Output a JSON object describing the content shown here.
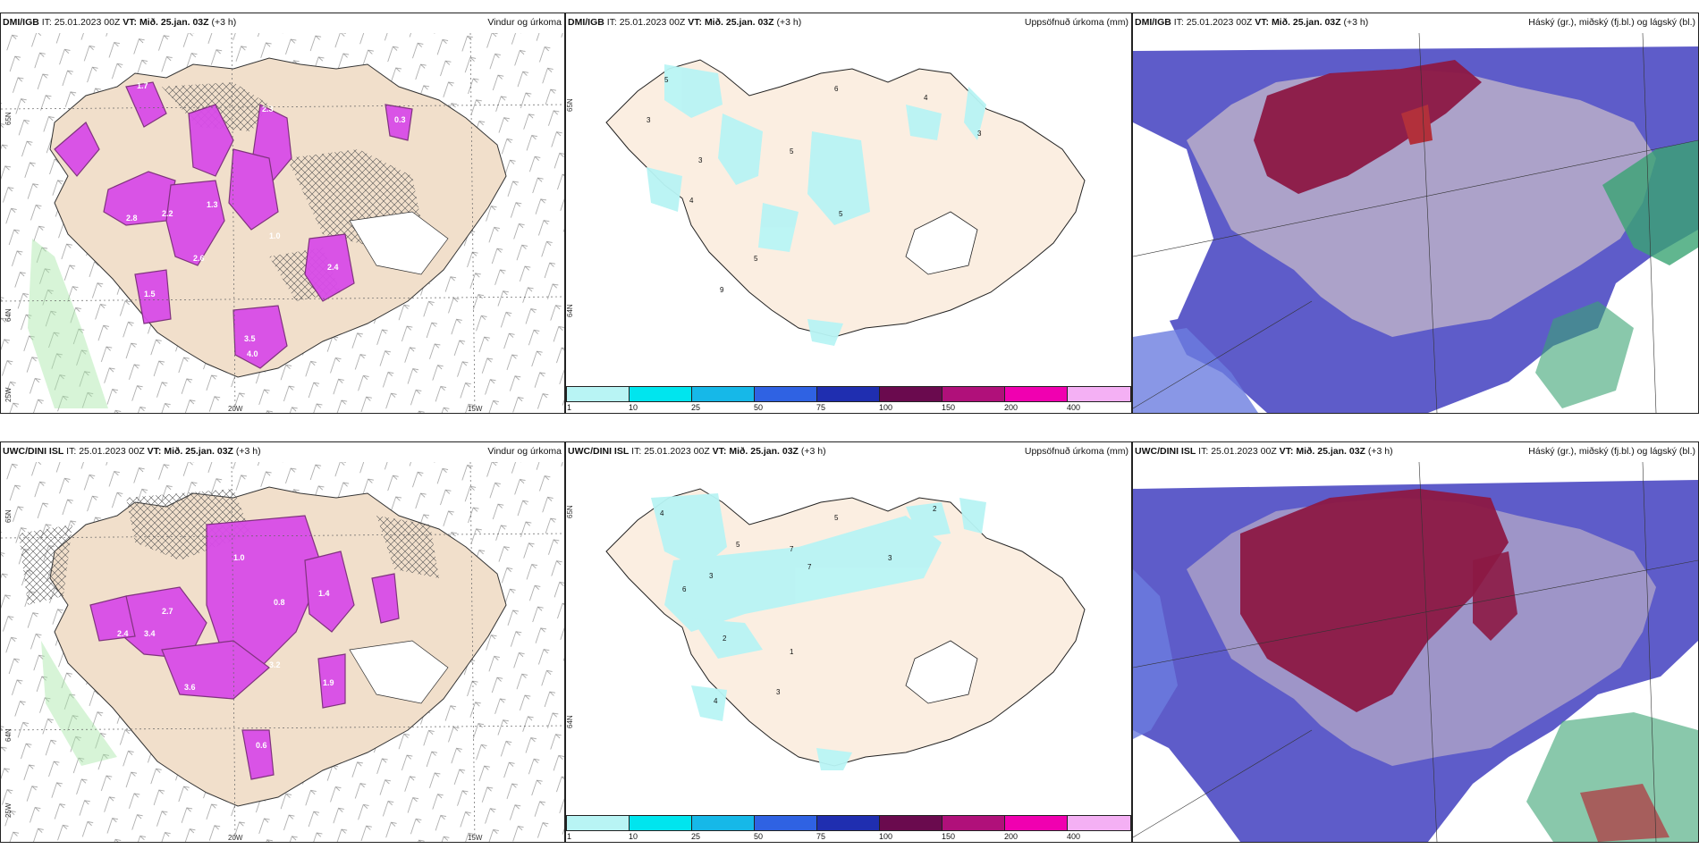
{
  "rows": [
    {
      "model": "DMI/IGB",
      "it_label": "IT:",
      "it_value": "25.01.2023 00Z",
      "vt_label": "VT:",
      "vt_value": "Mið. 25.jan. 03Z",
      "offset": "(+3 h)",
      "panels": [
        {
          "title": "Vindur og úrkoma",
          "lat_labels": [
            "65N",
            "64N"
          ],
          "lon_labels": [
            "25W",
            "20W",
            "15W"
          ],
          "values": [
            "2.8",
            "2.2",
            "1.3",
            "2.6",
            "3.5",
            "4.0",
            "2.3",
            "1.7",
            "0.3",
            "1.0",
            "1.5",
            "2.4"
          ]
        },
        {
          "title": "Uppsöfnuð úrkoma (mm)",
          "lat_labels": [
            "65N",
            "64N"
          ],
          "values": [
            "5",
            "3",
            "4",
            "5",
            "6",
            "3",
            "5",
            "5",
            "9",
            "4",
            "3"
          ]
        },
        {
          "title": "Háský (gr.), miðský (fj.bl.) og lágský (bl.)"
        }
      ]
    },
    {
      "model": "UWC/DINI ISL",
      "it_label": "IT:",
      "it_value": "25.01.2023 00Z",
      "vt_label": "VT:",
      "vt_value": "Mið. 25.jan. 03Z",
      "offset": "(+3 h)",
      "panels": [
        {
          "title": "Vindur og úrkoma",
          "lat_labels": [
            "65N",
            "64N"
          ],
          "lon_labels": [
            "25W",
            "20W",
            "15W"
          ],
          "values": [
            "3.4",
            "2.4",
            "3.6",
            "3.2",
            "1.4",
            "0.8",
            "1.0",
            "0.6",
            "2.7",
            "1.9"
          ]
        },
        {
          "title": "Uppsöfnuð úrkoma (mm)",
          "lat_labels": [
            "65N",
            "64N"
          ],
          "values": [
            "4",
            "5",
            "7",
            "3",
            "6",
            "5",
            "7",
            "2",
            "3",
            "1",
            "2",
            "4",
            "3"
          ]
        },
        {
          "title": "Háský (gr.), miðský (fj.bl.) og lágský (bl.)"
        }
      ]
    }
  ],
  "legend": {
    "ticks": [
      "1",
      "10",
      "25",
      "50",
      "75",
      "100",
      "150",
      "200",
      "400"
    ],
    "colors": [
      "#b8f4f4",
      "#00e5ee",
      "#16b8e8",
      "#2f62e3",
      "#1f2eb0",
      "#6a0a4e",
      "#b0107a",
      "#f000b0",
      "#f4b0f4"
    ]
  }
}
